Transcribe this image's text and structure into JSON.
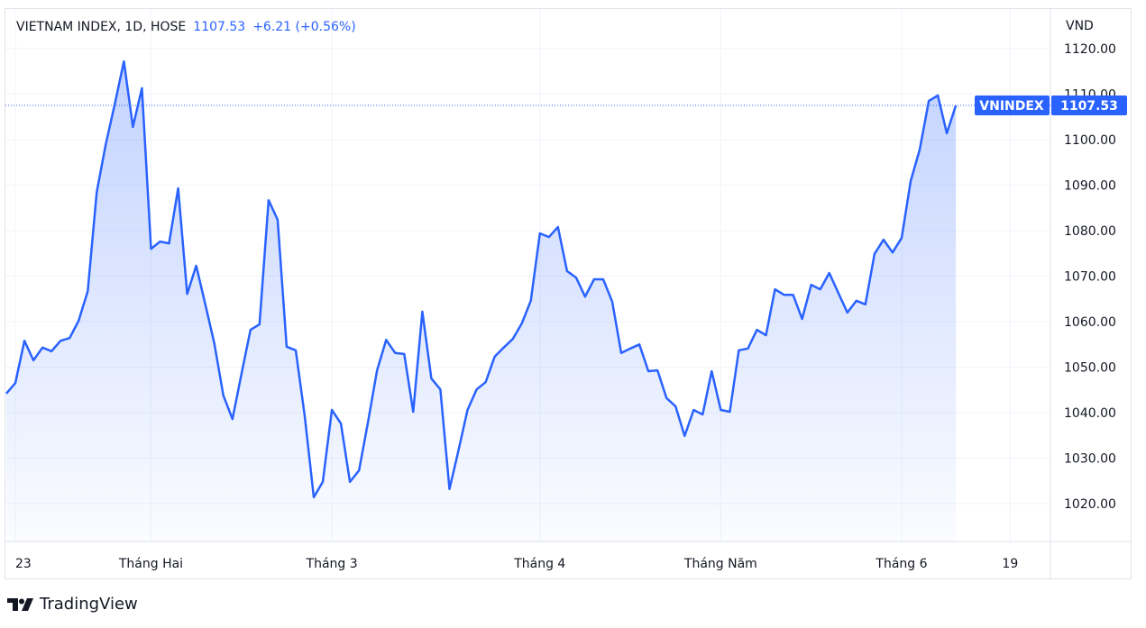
{
  "header": {
    "symbol": "VIETNAM INDEX, 1D, HOSE",
    "last": "1107.53",
    "change": "+6.21 (+0.56%)"
  },
  "brand": {
    "name": "TradingView",
    "icon": "tradingview-logo-icon"
  },
  "colors": {
    "line": "#2962ff",
    "fill_top": "#2962ff",
    "grid": "#f0f3fa",
    "text": "#131722"
  },
  "chart_data": {
    "type": "area",
    "title": "VIETNAM INDEX, 1D, HOSE",
    "ylabel": "VND",
    "ylim": [
      1011,
      1128
    ],
    "yticks": [
      1020,
      1030,
      1040,
      1050,
      1060,
      1070,
      1080,
      1090,
      1100,
      1110,
      1120
    ],
    "grid": true,
    "xticks": [
      {
        "index": 1,
        "label": "23"
      },
      {
        "index": 16,
        "label": "Tháng Hai"
      },
      {
        "index": 36,
        "label": "Tháng 3"
      },
      {
        "index": 59,
        "label": "Tháng 4"
      },
      {
        "index": 79,
        "label": "Tháng Năm"
      },
      {
        "index": 99,
        "label": "Tháng 6"
      },
      {
        "index": 111,
        "label": "19"
      }
    ],
    "series": [
      {
        "name": "VNINDEX",
        "last_label": "1107.53",
        "values": [
          1044.2,
          1046.5,
          1055.8,
          1051.5,
          1054.3,
          1053.5,
          1055.8,
          1056.4,
          1060.2,
          1066.7,
          1088.5,
          1099.0,
          1107.9,
          1117.2,
          1102.8,
          1111.3,
          1076.0,
          1077.6,
          1077.2,
          1089.3,
          1066.1,
          1072.3,
          1063.8,
          1055.2,
          1043.8,
          1038.6,
          1048.5,
          1058.2,
          1059.4,
          1086.7,
          1082.4,
          1054.5,
          1053.7,
          1039.2,
          1021.4,
          1024.8,
          1040.6,
          1037.6,
          1024.8,
          1027.3,
          1038.0,
          1049.3,
          1056.0,
          1053.1,
          1052.9,
          1040.2,
          1062.2,
          1047.5,
          1045.1,
          1023.2,
          1031.7,
          1040.6,
          1045.1,
          1046.7,
          1052.3,
          1054.3,
          1056.2,
          1059.6,
          1064.6,
          1079.4,
          1078.6,
          1080.8,
          1071.1,
          1069.7,
          1065.5,
          1069.3,
          1069.3,
          1064.4,
          1053.1,
          1054.1,
          1055.0,
          1049.1,
          1049.3,
          1043.2,
          1041.4,
          1034.9,
          1040.6,
          1039.6,
          1049.1,
          1040.6,
          1040.2,
          1053.7,
          1054.1,
          1058.2,
          1057.0,
          1067.1,
          1065.9,
          1065.9,
          1060.6,
          1068.1,
          1067.1,
          1070.7,
          1066.3,
          1062.0,
          1064.6,
          1063.8,
          1074.9,
          1078.0,
          1075.2,
          1078.4,
          1090.9,
          1097.8,
          1108.5,
          1109.7,
          1101.4,
          1107.53
        ]
      }
    ]
  }
}
